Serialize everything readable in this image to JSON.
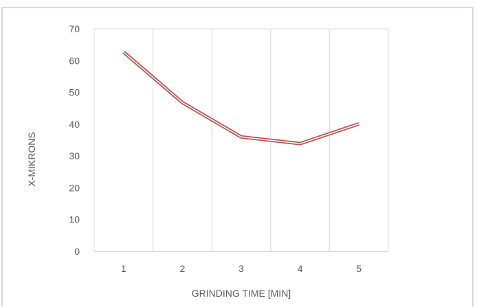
{
  "chart_data": {
    "type": "line",
    "title": "",
    "xlabel": "GRINDING TIME [MIN]",
    "ylabel": "X-MIKRONS",
    "categories": [
      "1",
      "2",
      "3",
      "4",
      "5"
    ],
    "series": [
      {
        "values": [
          62.7,
          46.8,
          36.0,
          33.9,
          40.1
        ],
        "color": "#c0504d",
        "style": "double-line"
      }
    ],
    "yticks": [
      "0",
      "10",
      "20",
      "30",
      "40",
      "50",
      "60",
      "70"
    ],
    "ylim": [
      0,
      70
    ],
    "grid": "vertical",
    "legend": "none"
  },
  "colors": {
    "series_line": "#c0504d",
    "grid": "#d9d9d9",
    "text": "#595959"
  }
}
